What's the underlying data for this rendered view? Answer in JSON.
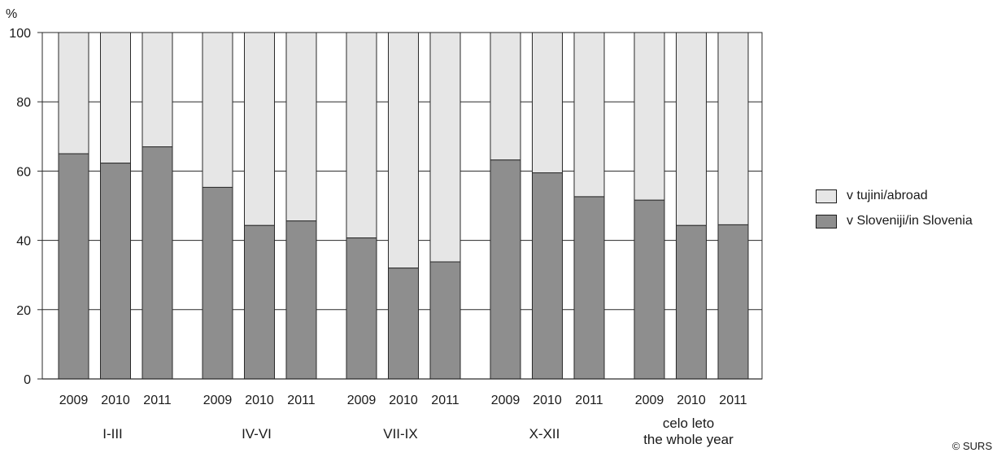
{
  "chart_data": {
    "type": "bar",
    "stacked": true,
    "ylabel": "%",
    "ylim": [
      0,
      100
    ],
    "yticks": [
      0,
      20,
      40,
      60,
      80,
      100
    ],
    "grid": true,
    "groups": [
      {
        "label": [
          "I-III"
        ],
        "years": [
          "2009",
          "2010",
          "2011"
        ],
        "slovenia": [
          65,
          62.3,
          67
        ]
      },
      {
        "label": [
          "IV-VI"
        ],
        "years": [
          "2009",
          "2010",
          "2011"
        ],
        "slovenia": [
          55.3,
          44.3,
          45.6
        ]
      },
      {
        "label": [
          "VII-IX"
        ],
        "years": [
          "2009",
          "2010",
          "2011"
        ],
        "slovenia": [
          40.7,
          32,
          33.8
        ]
      },
      {
        "label": [
          "X-XII"
        ],
        "years": [
          "2009",
          "2010",
          "2011"
        ],
        "slovenia": [
          63.2,
          59.5,
          52.6
        ]
      },
      {
        "label": [
          "celo leto",
          "the whole year"
        ],
        "years": [
          "2009",
          "2010",
          "2011"
        ],
        "slovenia": [
          51.6,
          44.3,
          44.5
        ]
      }
    ],
    "series": [
      {
        "name": "v tujini/abroad",
        "color": "#e6e6e6"
      },
      {
        "name": "v Sloveniji/in Slovenia",
        "color": "#8e8e8e"
      }
    ],
    "legend_position": "right"
  },
  "credit": "© SURS"
}
